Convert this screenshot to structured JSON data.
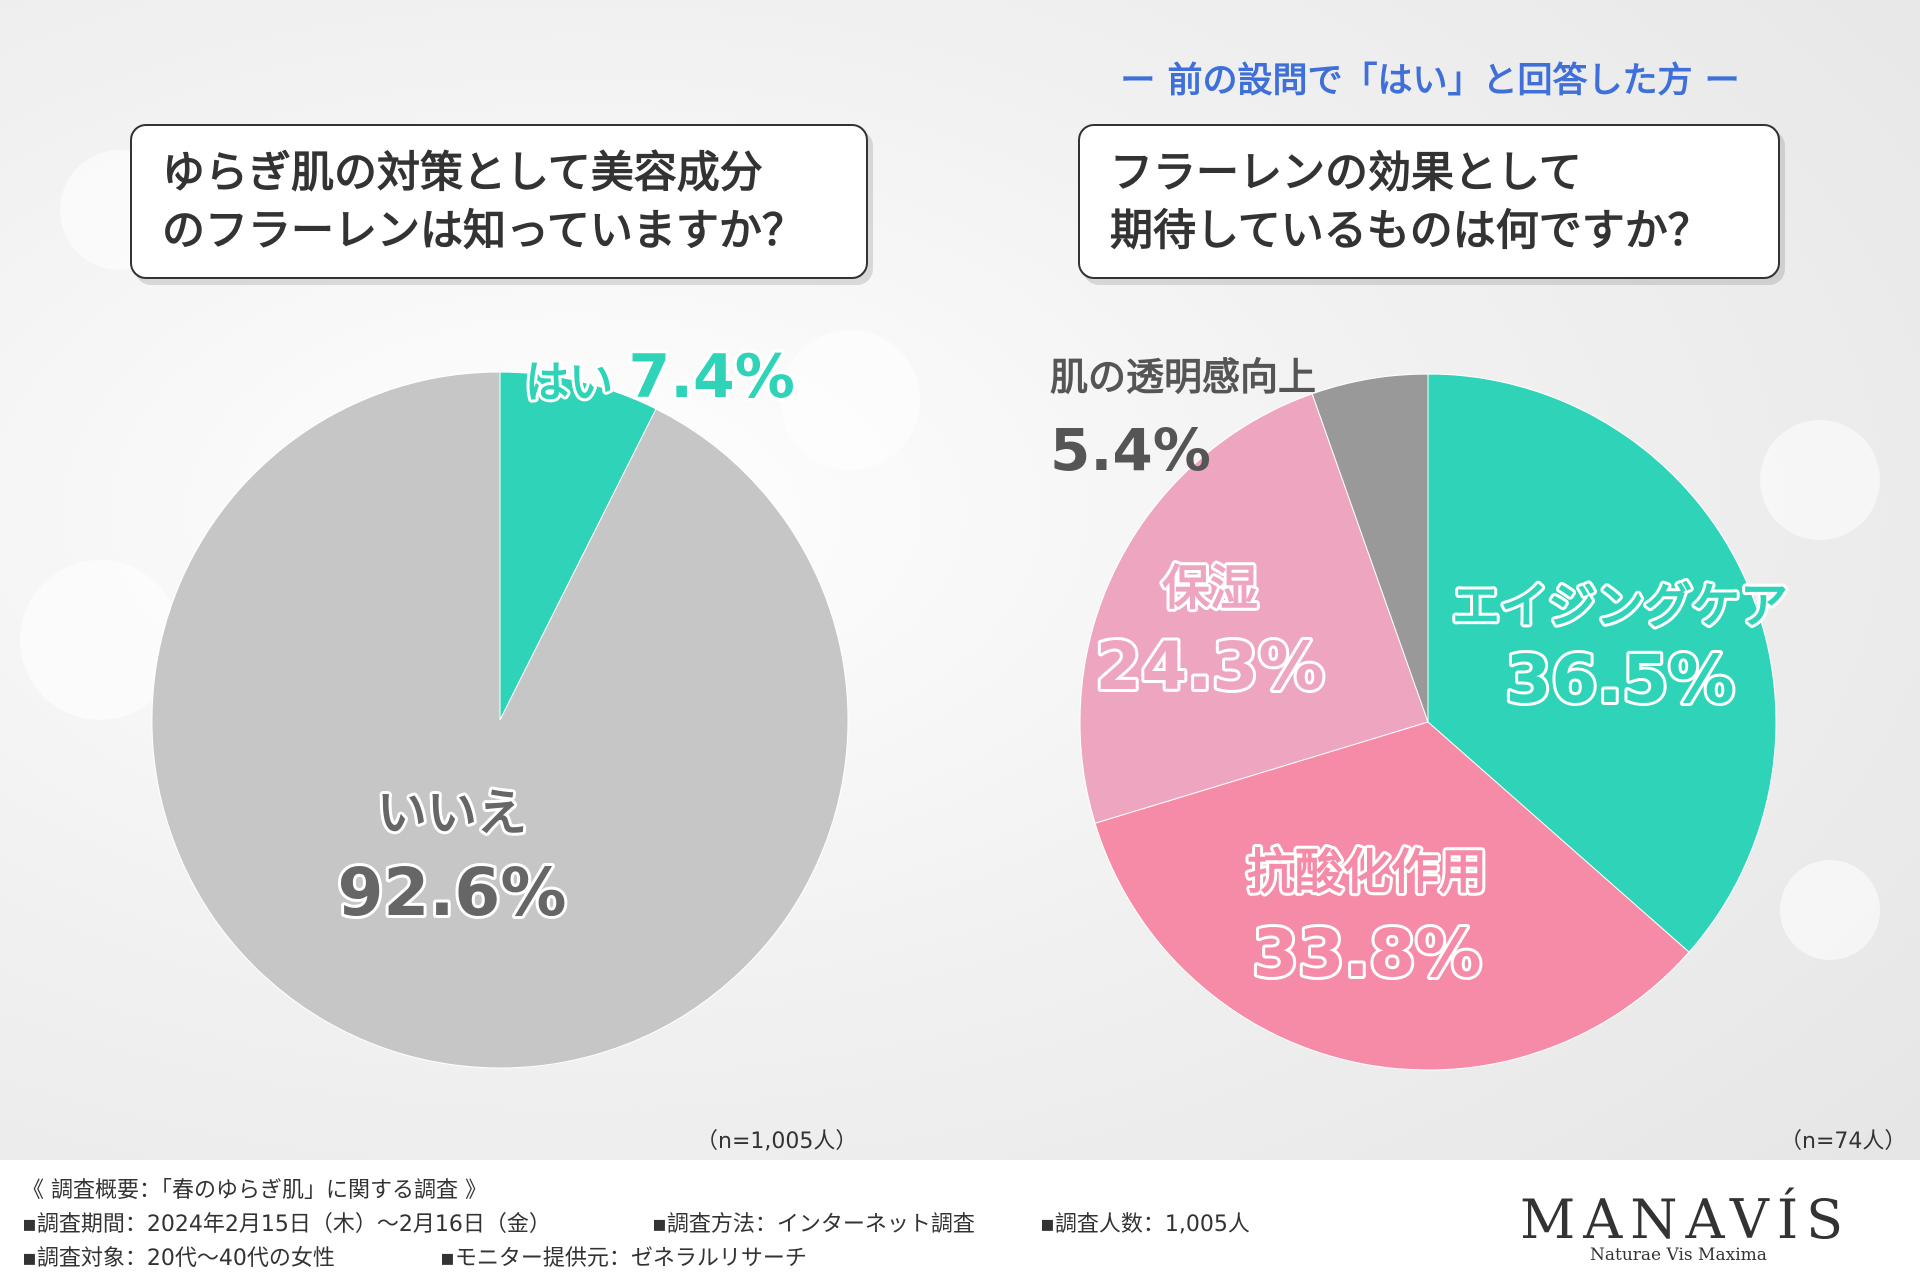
{
  "header": {
    "sub_note": "ー 前の設問で「はい」と回答した方 ー"
  },
  "questions": {
    "left_line1": "ゆらぎ肌の対策として美容成分",
    "left_line2": "のフラーレンは知っていますか？",
    "right_line1": "フラーレンの効果として",
    "right_line2": "期待しているものは何ですか？"
  },
  "chart_data": [
    {
      "type": "pie",
      "slices": [
        {
          "label": "はい",
          "value": 7.4,
          "display": "7.4%",
          "color": "#2fd3b8"
        },
        {
          "label": "いいえ",
          "value": 92.6,
          "display": "92.6%",
          "color": "#c6c6c6"
        }
      ],
      "sample": "（n=1,005人）"
    },
    {
      "type": "pie",
      "slices": [
        {
          "label": "エイジングケア",
          "value": 36.5,
          "display": "36.5%",
          "color": "#2fd3b8"
        },
        {
          "label": "抗酸化作用",
          "value": 33.8,
          "display": "33.8%",
          "color": "#f58ba6"
        },
        {
          "label": "保湿",
          "value": 24.3,
          "display": "24.3%",
          "color": "#eea5bf"
        },
        {
          "label": "肌の透明感向上",
          "value": 5.4,
          "display": "5.4%",
          "color": "#999999"
        }
      ],
      "sample": "（n=74人）"
    }
  ],
  "footer": {
    "summary": "《 調査概要：「春のゆらぎ肌」に関する調査 》",
    "period": "▪調査期間：2024年2月15日（木）～2月16日（金）",
    "method": "▪調査方法：インターネット調査",
    "count": "▪調査人数：1,005人",
    "target": "▪調査対象：20代～40代の女性",
    "provider": "▪モニター提供元：ゼネラルリサーチ",
    "logo": "MANAVÍS",
    "logo_sub": "Naturae Vis Maxima"
  }
}
